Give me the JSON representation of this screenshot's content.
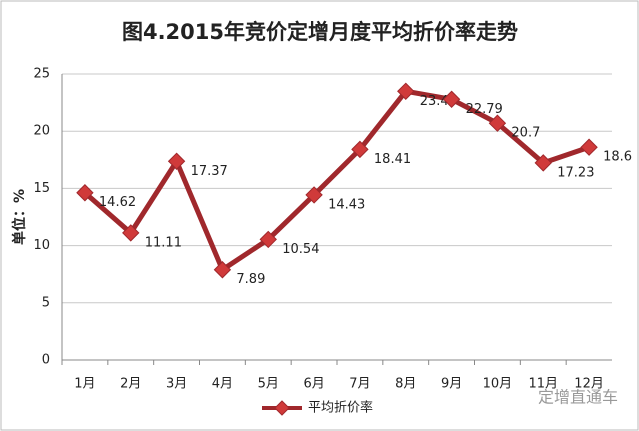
{
  "chart_data": {
    "type": "line",
    "title": "图4.2015年竞价定增月度平均折价率走势",
    "y_label": "单位：%",
    "categories": [
      "1月",
      "2月",
      "3月",
      "4月",
      "5月",
      "6月",
      "7月",
      "8月",
      "9月",
      "10月",
      "11月",
      "12月"
    ],
    "series": [
      {
        "name": "平均折价率",
        "color": "#a0282c",
        "marker_color": "#d03a3a",
        "values": [
          14.62,
          11.11,
          17.37,
          7.89,
          10.54,
          14.43,
          18.41,
          23.49,
          22.79,
          20.7,
          17.23,
          18.6
        ]
      }
    ],
    "ylim": [
      0,
      25
    ],
    "yticks": [
      0,
      5,
      10,
      15,
      20,
      25
    ],
    "grid": true,
    "legend": "bottom",
    "watermark": "定增直通车"
  }
}
